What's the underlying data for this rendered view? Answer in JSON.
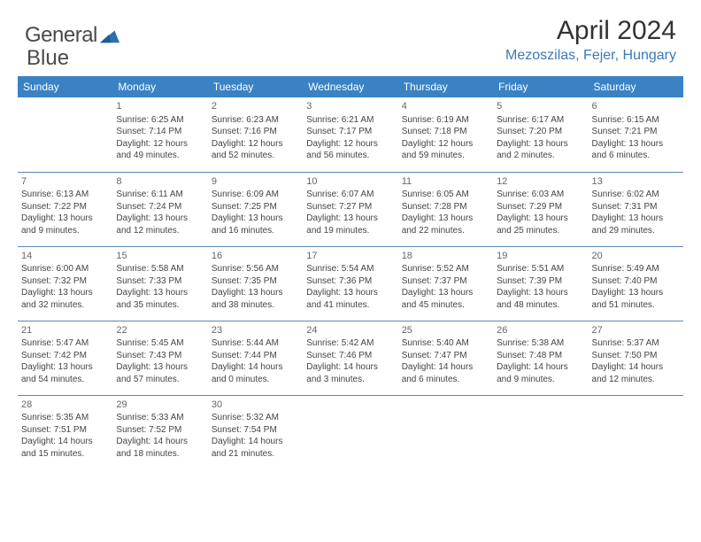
{
  "brand": {
    "name_part1": "General",
    "name_part2": "Blue"
  },
  "header": {
    "month_title": "April 2024",
    "location": "Mezoszilas, Fejer, Hungary"
  },
  "colors": {
    "header_bg": "#3a82c4",
    "header_text": "#ffffff",
    "location_text": "#3a7ab8",
    "row_border": "#5a88b5",
    "body_text": "#444444",
    "logo_text": "#4a4a4a",
    "logo_shape": "#2f6fb0"
  },
  "day_headers": [
    "Sunday",
    "Monday",
    "Tuesday",
    "Wednesday",
    "Thursday",
    "Friday",
    "Saturday"
  ],
  "weeks": [
    [
      {},
      {
        "n": "1",
        "lines": [
          "Sunrise: 6:25 AM",
          "Sunset: 7:14 PM",
          "Daylight: 12 hours",
          "and 49 minutes."
        ]
      },
      {
        "n": "2",
        "lines": [
          "Sunrise: 6:23 AM",
          "Sunset: 7:16 PM",
          "Daylight: 12 hours",
          "and 52 minutes."
        ]
      },
      {
        "n": "3",
        "lines": [
          "Sunrise: 6:21 AM",
          "Sunset: 7:17 PM",
          "Daylight: 12 hours",
          "and 56 minutes."
        ]
      },
      {
        "n": "4",
        "lines": [
          "Sunrise: 6:19 AM",
          "Sunset: 7:18 PM",
          "Daylight: 12 hours",
          "and 59 minutes."
        ]
      },
      {
        "n": "5",
        "lines": [
          "Sunrise: 6:17 AM",
          "Sunset: 7:20 PM",
          "Daylight: 13 hours",
          "and 2 minutes."
        ]
      },
      {
        "n": "6",
        "lines": [
          "Sunrise: 6:15 AM",
          "Sunset: 7:21 PM",
          "Daylight: 13 hours",
          "and 6 minutes."
        ]
      }
    ],
    [
      {
        "n": "7",
        "lines": [
          "Sunrise: 6:13 AM",
          "Sunset: 7:22 PM",
          "Daylight: 13 hours",
          "and 9 minutes."
        ]
      },
      {
        "n": "8",
        "lines": [
          "Sunrise: 6:11 AM",
          "Sunset: 7:24 PM",
          "Daylight: 13 hours",
          "and 12 minutes."
        ]
      },
      {
        "n": "9",
        "lines": [
          "Sunrise: 6:09 AM",
          "Sunset: 7:25 PM",
          "Daylight: 13 hours",
          "and 16 minutes."
        ]
      },
      {
        "n": "10",
        "lines": [
          "Sunrise: 6:07 AM",
          "Sunset: 7:27 PM",
          "Daylight: 13 hours",
          "and 19 minutes."
        ]
      },
      {
        "n": "11",
        "lines": [
          "Sunrise: 6:05 AM",
          "Sunset: 7:28 PM",
          "Daylight: 13 hours",
          "and 22 minutes."
        ]
      },
      {
        "n": "12",
        "lines": [
          "Sunrise: 6:03 AM",
          "Sunset: 7:29 PM",
          "Daylight: 13 hours",
          "and 25 minutes."
        ]
      },
      {
        "n": "13",
        "lines": [
          "Sunrise: 6:02 AM",
          "Sunset: 7:31 PM",
          "Daylight: 13 hours",
          "and 29 minutes."
        ]
      }
    ],
    [
      {
        "n": "14",
        "lines": [
          "Sunrise: 6:00 AM",
          "Sunset: 7:32 PM",
          "Daylight: 13 hours",
          "and 32 minutes."
        ]
      },
      {
        "n": "15",
        "lines": [
          "Sunrise: 5:58 AM",
          "Sunset: 7:33 PM",
          "Daylight: 13 hours",
          "and 35 minutes."
        ]
      },
      {
        "n": "16",
        "lines": [
          "Sunrise: 5:56 AM",
          "Sunset: 7:35 PM",
          "Daylight: 13 hours",
          "and 38 minutes."
        ]
      },
      {
        "n": "17",
        "lines": [
          "Sunrise: 5:54 AM",
          "Sunset: 7:36 PM",
          "Daylight: 13 hours",
          "and 41 minutes."
        ]
      },
      {
        "n": "18",
        "lines": [
          "Sunrise: 5:52 AM",
          "Sunset: 7:37 PM",
          "Daylight: 13 hours",
          "and 45 minutes."
        ]
      },
      {
        "n": "19",
        "lines": [
          "Sunrise: 5:51 AM",
          "Sunset: 7:39 PM",
          "Daylight: 13 hours",
          "and 48 minutes."
        ]
      },
      {
        "n": "20",
        "lines": [
          "Sunrise: 5:49 AM",
          "Sunset: 7:40 PM",
          "Daylight: 13 hours",
          "and 51 minutes."
        ]
      }
    ],
    [
      {
        "n": "21",
        "lines": [
          "Sunrise: 5:47 AM",
          "Sunset: 7:42 PM",
          "Daylight: 13 hours",
          "and 54 minutes."
        ]
      },
      {
        "n": "22",
        "lines": [
          "Sunrise: 5:45 AM",
          "Sunset: 7:43 PM",
          "Daylight: 13 hours",
          "and 57 minutes."
        ]
      },
      {
        "n": "23",
        "lines": [
          "Sunrise: 5:44 AM",
          "Sunset: 7:44 PM",
          "Daylight: 14 hours",
          "and 0 minutes."
        ]
      },
      {
        "n": "24",
        "lines": [
          "Sunrise: 5:42 AM",
          "Sunset: 7:46 PM",
          "Daylight: 14 hours",
          "and 3 minutes."
        ]
      },
      {
        "n": "25",
        "lines": [
          "Sunrise: 5:40 AM",
          "Sunset: 7:47 PM",
          "Daylight: 14 hours",
          "and 6 minutes."
        ]
      },
      {
        "n": "26",
        "lines": [
          "Sunrise: 5:38 AM",
          "Sunset: 7:48 PM",
          "Daylight: 14 hours",
          "and 9 minutes."
        ]
      },
      {
        "n": "27",
        "lines": [
          "Sunrise: 5:37 AM",
          "Sunset: 7:50 PM",
          "Daylight: 14 hours",
          "and 12 minutes."
        ]
      }
    ],
    [
      {
        "n": "28",
        "lines": [
          "Sunrise: 5:35 AM",
          "Sunset: 7:51 PM",
          "Daylight: 14 hours",
          "and 15 minutes."
        ]
      },
      {
        "n": "29",
        "lines": [
          "Sunrise: 5:33 AM",
          "Sunset: 7:52 PM",
          "Daylight: 14 hours",
          "and 18 minutes."
        ]
      },
      {
        "n": "30",
        "lines": [
          "Sunrise: 5:32 AM",
          "Sunset: 7:54 PM",
          "Daylight: 14 hours",
          "and 21 minutes."
        ]
      },
      {},
      {},
      {},
      {}
    ]
  ]
}
